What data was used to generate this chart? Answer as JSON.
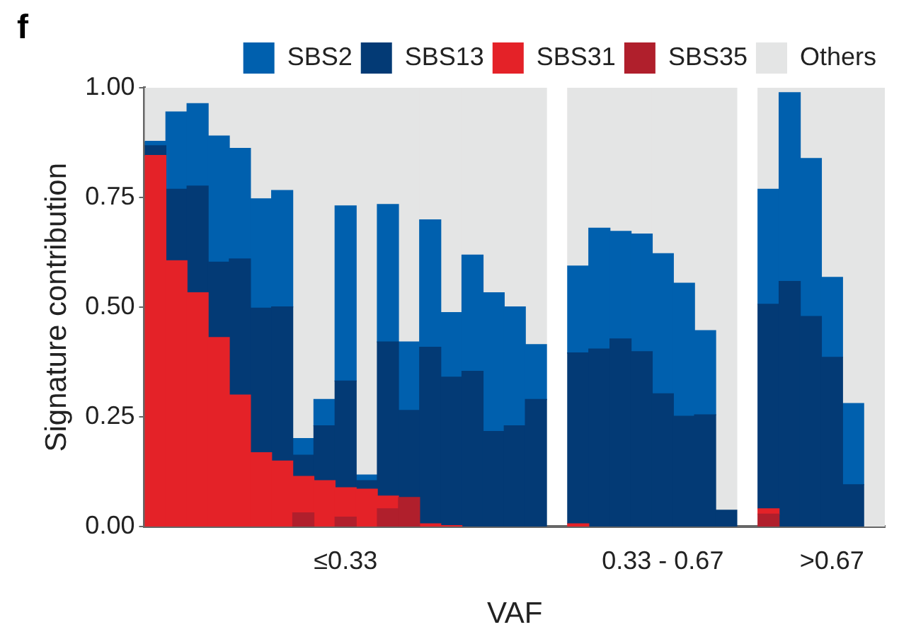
{
  "chart_data": {
    "type": "bar",
    "title": "f",
    "xlabel": "VAF",
    "ylabel": "Signature contribution",
    "categories": [
      null,
      null,
      null,
      null,
      null,
      null,
      null,
      null,
      null,
      "≤0.33",
      null,
      null,
      null,
      null,
      null,
      null,
      null,
      null,
      null,
      null,
      null,
      null,
      null,
      null,
      "0.33 - 0.67",
      null,
      null,
      null,
      null,
      null,
      null,
      null,
      ">0.67",
      null,
      null
    ],
    "stacked": true,
    "legend": "top right",
    "grid": false,
    "ylim": [
      0,
      1
    ],
    "yticks": [
      {
        "value": 0,
        "label": "0.00"
      },
      {
        "value": 0.25,
        "label": "0.25"
      },
      {
        "value": 0.5,
        "label": "0.50"
      },
      {
        "value": 0.75,
        "label": "0.75"
      },
      {
        "value": 1,
        "label": "1.00"
      }
    ],
    "series": [
      {
        "name": "SBS35",
        "color": "#b01f2c",
        "values": [
          null,
          null,
          null,
          null,
          null,
          null,
          null,
          0.032,
          null,
          0.022,
          null,
          0.041,
          0.067,
          null,
          null,
          null,
          null,
          null,
          null,
          null,
          null,
          null,
          null,
          null,
          null,
          null,
          null,
          null,
          null,
          0.029,
          null,
          null,
          null,
          null,
          null
        ]
      },
      {
        "name": "SBS31",
        "color": "#e42228",
        "values": [
          0.846,
          0.606,
          0.533,
          0.431,
          0.3,
          0.169,
          0.15,
          0.083,
          0.105,
          0.067,
          0.086,
          0.029,
          null,
          0.007,
          0.003,
          null,
          null,
          null,
          null,
          null,
          0.007,
          null,
          null,
          null,
          null,
          null,
          null,
          null,
          null,
          0.012,
          null,
          null,
          null,
          null,
          null
        ]
      },
      {
        "name": "SBS13",
        "color": "#033a75",
        "values": [
          0.022,
          0.163,
          0.243,
          0.172,
          0.31,
          0.329,
          0.351,
          0.048,
          0.125,
          0.243,
          0.019,
          0.351,
          0.198,
          0.402,
          0.338,
          0.354,
          0.217,
          0.23,
          0.29,
          null,
          0.389,
          0.405,
          0.428,
          0.399,
          0.303,
          0.252,
          0.255,
          0.038,
          null,
          0.466,
          0.559,
          0.479,
          0.386,
          0.096,
          null
        ]
      },
      {
        "name": "SBS2",
        "color": "#0060ae",
        "values": [
          0.01,
          0.176,
          0.188,
          0.287,
          0.252,
          0.249,
          0.265,
          0.038,
          0.06,
          0.399,
          0.013,
          0.313,
          0.156,
          0.29,
          0.147,
          0.265,
          0.316,
          0.271,
          0.125,
          null,
          0.198,
          0.275,
          0.245,
          0.268,
          0.319,
          0.303,
          0.192,
          null,
          null,
          0.262,
          0.43,
          0.36,
          0.182,
          0.185,
          null
        ]
      },
      {
        "name": "Others",
        "color": "#e4e5e5",
        "values": [
          0.122,
          0.055,
          0.036,
          0.11,
          0.138,
          0.253,
          0.234,
          0.799,
          0.71,
          0.269,
          0.882,
          0.266,
          0.579,
          0.301,
          0.512,
          0.381,
          0.467,
          0.499,
          0.585,
          null,
          0.406,
          0.32,
          0.327,
          0.333,
          0.378,
          0.445,
          0.553,
          0.962,
          null,
          0.231,
          0.011,
          0.161,
          0.432,
          0.719,
          1
        ]
      }
    ]
  }
}
